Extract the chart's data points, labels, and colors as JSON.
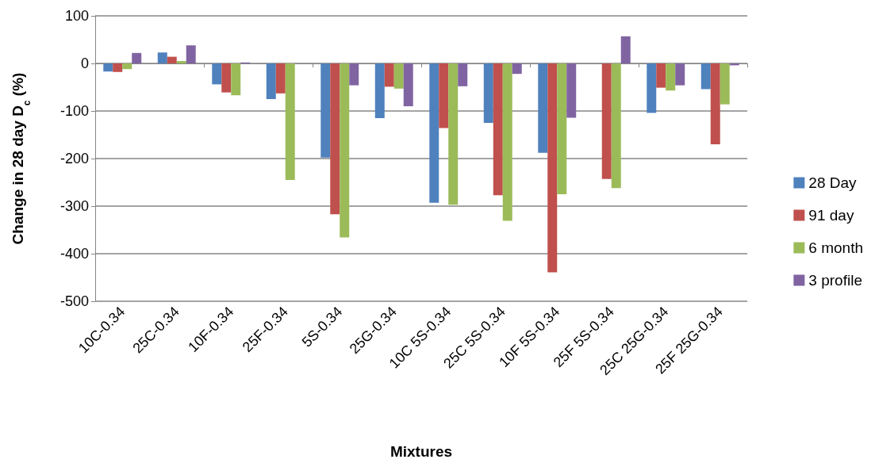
{
  "chart_data": {
    "type": "bar",
    "xlabel": "Mixtures",
    "ylabel": "Change in 28 day D$_{c}$ (%)",
    "categories": [
      "10C-0.34",
      "25C-0.34",
      "10F-0.34",
      "25F-0.34",
      "5S-0.34",
      "25G-0.34",
      "10C 5S-0.34",
      "25C 5S-0.34",
      "10F 5S-0.34",
      "25F 5S-0.34",
      "25C 25G-0.34",
      "25F 25G-0.34"
    ],
    "series": [
      {
        "name": "28 Day",
        "color": "#4f81bd",
        "values": [
          -17,
          23,
          -44,
          -75,
          -198,
          -115,
          -293,
          -125,
          -188,
          null,
          -104,
          -54
        ]
      },
      {
        "name": "91 day",
        "color": "#c0504d",
        "values": [
          -18,
          14,
          -61,
          -63,
          -317,
          -49,
          -136,
          -277,
          -439,
          -243,
          -51,
          -170
        ]
      },
      {
        "name": "6 month",
        "color": "#9bbb59",
        "values": [
          -12,
          5,
          -67,
          -245,
          -366,
          -53,
          -297,
          -331,
          -275,
          -262,
          -57,
          -86
        ]
      },
      {
        "name": "3 profile",
        "color": "#8064a2",
        "values": [
          22,
          38,
          2,
          null,
          -46,
          -90,
          -48,
          -22,
          -114,
          57,
          -46,
          -4
        ]
      }
    ],
    "ylim": [
      -500,
      100
    ],
    "yticks": [
      -500,
      -400,
      -300,
      -200,
      -100,
      0,
      100
    ],
    "grid": "y",
    "legend": "right"
  }
}
